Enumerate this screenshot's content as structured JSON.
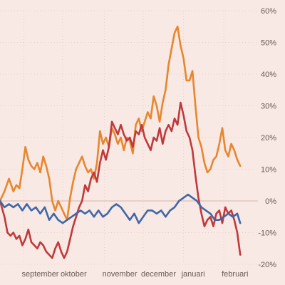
{
  "chart_data": {
    "type": "line",
    "title": "",
    "xlabel": "",
    "ylabel": "",
    "ylim": [
      -20,
      60
    ],
    "yticks": [
      60,
      50,
      40,
      30,
      20,
      10,
      0,
      -10,
      -20
    ],
    "ytick_labels": [
      "60%",
      "50%",
      "40%",
      "30%",
      "20%",
      "10%",
      "0%",
      "-10%",
      "-20%"
    ],
    "y_axis_position": "right",
    "grid": true,
    "legend": "none",
    "xlim": [
      0,
      170
    ],
    "months": [
      {
        "label": "september",
        "x": 16
      },
      {
        "label": "oktober",
        "x": 42
      },
      {
        "label": "november",
        "x": 70
      },
      {
        "label": "december",
        "x": 96
      },
      {
        "label": "januari",
        "x": 123
      },
      {
        "label": "februari",
        "x": 150
      }
    ],
    "series": [
      {
        "color": "#e8862e",
        "x": [
          0,
          3,
          6,
          9,
          11,
          13,
          15,
          17,
          19,
          21,
          23,
          25,
          27,
          29,
          31,
          33,
          35,
          37,
          39,
          41,
          43,
          45,
          47,
          49,
          51,
          53,
          55,
          57,
          59,
          61,
          63,
          65,
          67,
          69,
          71,
          73,
          75,
          77,
          79,
          81,
          83,
          85,
          87,
          89,
          91,
          93,
          95,
          97,
          99,
          101,
          103,
          105,
          107,
          109,
          111,
          113,
          115,
          117,
          119,
          121,
          123,
          125,
          127,
          129,
          131,
          133,
          135,
          137,
          139,
          141,
          143,
          145,
          147,
          149,
          151,
          153,
          155,
          157,
          159,
          161
        ],
        "y": [
          0,
          3,
          7,
          3,
          5,
          4,
          10,
          17,
          13,
          11,
          10,
          12,
          9,
          14,
          11,
          7,
          0,
          -3,
          0,
          -2,
          -4,
          -6,
          1,
          6,
          10,
          12,
          14,
          11,
          9,
          10,
          7,
          12,
          22,
          18,
          20,
          17,
          23,
          21,
          18,
          20,
          16,
          20,
          19,
          15,
          24,
          26,
          22,
          25,
          28,
          26,
          33,
          30,
          25,
          31,
          35,
          43,
          48,
          53,
          55,
          49,
          45,
          38,
          38,
          41,
          30,
          20,
          17,
          12,
          9,
          10,
          13,
          14,
          18,
          23,
          16,
          14,
          18,
          16,
          13,
          11
        ]
      },
      {
        "color": "#c0393b",
        "x": [
          0,
          3,
          5,
          7,
          9,
          11,
          13,
          15,
          17,
          19,
          21,
          23,
          25,
          27,
          29,
          31,
          33,
          35,
          37,
          39,
          41,
          43,
          45,
          47,
          49,
          51,
          53,
          55,
          57,
          59,
          61,
          63,
          65,
          67,
          69,
          71,
          73,
          75,
          77,
          79,
          81,
          83,
          85,
          87,
          89,
          91,
          93,
          95,
          97,
          99,
          101,
          103,
          105,
          107,
          109,
          111,
          113,
          115,
          117,
          119,
          121,
          123,
          125,
          127,
          129,
          131,
          133,
          135,
          137,
          139,
          141,
          143,
          145,
          147,
          149,
          151,
          153,
          155,
          157,
          159,
          161
        ],
        "y": [
          0,
          -5,
          -10,
          -11,
          -10,
          -12,
          -11,
          -14,
          -12,
          -9,
          -13,
          -14,
          -15,
          -13,
          -14,
          -16,
          -17,
          -18,
          -15,
          -13,
          -16,
          -18,
          -16,
          -12,
          -8,
          -5,
          -2,
          0,
          5,
          3,
          7,
          9,
          6,
          12,
          16,
          13,
          17,
          25,
          23,
          21,
          24,
          21,
          19,
          20,
          17,
          22,
          21,
          24,
          20,
          18,
          16,
          20,
          19,
          23,
          18,
          22,
          24,
          22,
          26,
          24,
          31,
          27,
          22,
          20,
          16,
          8,
          1,
          -4,
          -8,
          -6,
          -5,
          -8,
          -4,
          -3,
          -7,
          -2,
          -4,
          -3,
          -6,
          -10,
          -17
        ]
      },
      {
        "color": "#3f67a7",
        "x": [
          0,
          3,
          6,
          9,
          12,
          15,
          18,
          21,
          24,
          27,
          30,
          33,
          36,
          39,
          42,
          45,
          48,
          51,
          54,
          57,
          60,
          63,
          66,
          69,
          72,
          75,
          78,
          81,
          84,
          87,
          90,
          93,
          96,
          99,
          102,
          105,
          108,
          111,
          114,
          117,
          120,
          123,
          126,
          129,
          132,
          135,
          138,
          141,
          144,
          147,
          150,
          153,
          156,
          159,
          161
        ],
        "y": [
          0,
          -2,
          -1,
          -2,
          -1,
          -3,
          -1,
          -3,
          -2,
          -4,
          -2,
          -6,
          -4,
          -6,
          -7,
          -6,
          -5,
          -4,
          -3,
          -4,
          -3,
          -5,
          -3,
          -5,
          -4,
          -2,
          -1,
          -2,
          -4,
          -6,
          -4,
          -7,
          -5,
          -3,
          -3,
          -4,
          -3,
          -5,
          -3,
          -2,
          0,
          1,
          2,
          1,
          0,
          -2,
          -3,
          -4,
          -6,
          -6,
          -5,
          -4,
          -5,
          -4,
          -7
        ]
      }
    ]
  }
}
